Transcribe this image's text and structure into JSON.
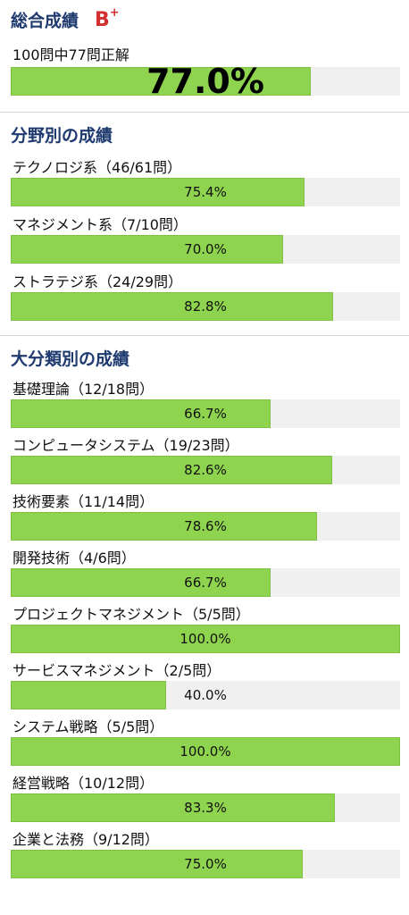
{
  "overall": {
    "title": "総合成績",
    "grade": "B",
    "grade_mod": "+",
    "summary": "100問中77問正解",
    "percent_text": "77.0%",
    "fraction": 0.77
  },
  "field_section": {
    "title": "分野別の成績",
    "items": [
      {
        "label": "テクノロジ系（46/61問）",
        "percent_text": "75.4%",
        "fraction": 0.754
      },
      {
        "label": "マネジメント系（7/10問）",
        "percent_text": "70.0%",
        "fraction": 0.7
      },
      {
        "label": "ストラテジ系（24/29問）",
        "percent_text": "82.8%",
        "fraction": 0.828
      }
    ]
  },
  "category_section": {
    "title": "大分類別の成績",
    "items": [
      {
        "label": "基礎理論（12/18問）",
        "percent_text": "66.7%",
        "fraction": 0.667
      },
      {
        "label": "コンピュータシステム（19/23問）",
        "percent_text": "82.6%",
        "fraction": 0.826
      },
      {
        "label": "技術要素（11/14問）",
        "percent_text": "78.6%",
        "fraction": 0.786
      },
      {
        "label": "開発技術（4/6問）",
        "percent_text": "66.7%",
        "fraction": 0.667
      },
      {
        "label": "プロジェクトマネジメント（5/5問）",
        "percent_text": "100.0%",
        "fraction": 1.0
      },
      {
        "label": "サービスマネジメント（2/5問）",
        "percent_text": "40.0%",
        "fraction": 0.4
      },
      {
        "label": "システム戦略（5/5問）",
        "percent_text": "100.0%",
        "fraction": 1.0
      },
      {
        "label": "経営戦略（10/12問）",
        "percent_text": "83.3%",
        "fraction": 0.833
      },
      {
        "label": "企業と法務（9/12問）",
        "percent_text": "75.0%",
        "fraction": 0.75
      }
    ]
  },
  "colors": {
    "bar_fill": "#8fd44f",
    "bar_track": "#f0f0f0",
    "title": "#1e3a6e",
    "grade": "#d32f2f"
  }
}
